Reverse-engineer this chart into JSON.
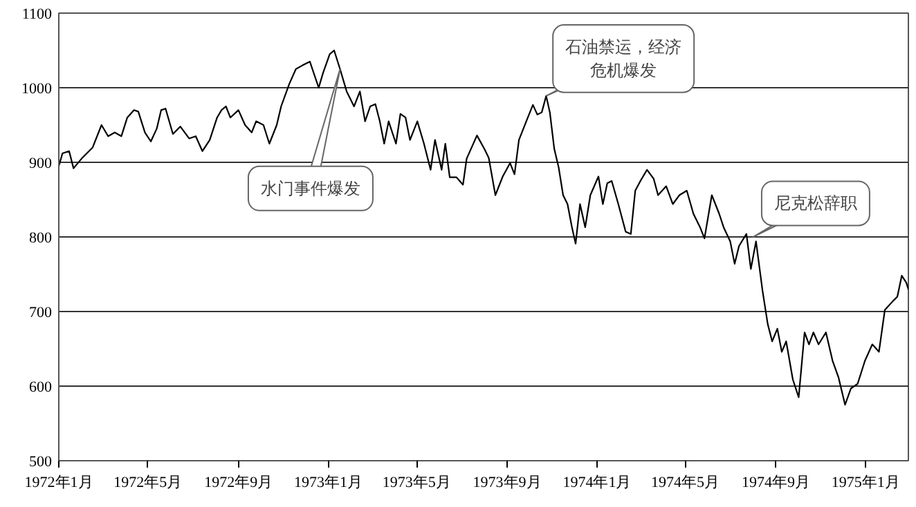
{
  "chart_data": {
    "type": "line",
    "x": [
      "1972-01-01",
      "1972-01-06",
      "1972-01-15",
      "1972-01-21",
      "1972-02-01",
      "1972-02-16",
      "1972-02-28",
      "1972-03-08",
      "1972-03-17",
      "1972-03-26",
      "1972-04-03",
      "1972-04-12",
      "1972-04-18",
      "1972-04-27",
      "1972-05-05",
      "1972-05-13",
      "1972-05-19",
      "1972-05-25",
      "1972-06-04",
      "1972-06-14",
      "1972-06-26",
      "1972-07-05",
      "1972-07-14",
      "1972-07-24",
      "1972-08-03",
      "1972-08-09",
      "1972-08-15",
      "1972-08-21",
      "1972-09-01",
      "1972-09-10",
      "1972-09-19",
      "1972-09-25",
      "1972-10-05",
      "1972-10-13",
      "1972-10-23",
      "1972-10-29",
      "1972-11-09",
      "1972-11-18",
      "1972-11-27",
      "1972-12-07",
      "1972-12-19",
      "1972-12-25",
      "1973-01-03",
      "1973-01-09",
      "1973-01-17",
      "1973-01-26",
      "1973-02-05",
      "1973-02-13",
      "1973-02-20",
      "1973-02-27",
      "1973-03-06",
      "1973-03-12",
      "1973-03-18",
      "1973-03-24",
      "1973-04-03",
      "1973-04-09",
      "1973-04-16",
      "1973-04-22",
      "1973-05-02",
      "1973-05-11",
      "1973-05-20",
      "1973-05-26",
      "1973-06-04",
      "1973-06-09",
      "1973-06-15",
      "1973-06-24",
      "1973-07-03",
      "1973-07-08",
      "1973-07-22",
      "1973-08-01",
      "1973-08-07",
      "1973-08-16",
      "1973-08-26",
      "1973-09-05",
      "1973-09-11",
      "1973-09-17",
      "1973-09-27",
      "1973-10-06",
      "1973-10-12",
      "1973-10-18",
      "1973-10-24",
      "1973-10-29",
      "1973-11-04",
      "1973-11-10",
      "1973-11-16",
      "1973-11-22",
      "1973-11-28",
      "1973-12-03",
      "1973-12-09",
      "1973-12-16",
      "1973-12-23",
      "1974-01-03",
      "1974-01-09",
      "1974-01-15",
      "1974-01-21",
      "1974-01-30",
      "1974-02-09",
      "1974-02-16",
      "1974-02-22",
      "1974-03-01",
      "1974-03-10",
      "1974-03-19",
      "1974-03-25",
      "1974-04-05",
      "1974-04-14",
      "1974-04-23",
      "1974-05-03",
      "1974-05-12",
      "1974-05-21",
      "1974-05-27",
      "1974-06-06",
      "1974-06-16",
      "1974-06-22",
      "1974-07-01",
      "1974-07-07",
      "1974-07-13",
      "1974-07-23",
      "1974-07-29",
      "1974-08-05",
      "1974-08-14",
      "1974-08-21",
      "1974-08-27",
      "1974-09-03",
      "1974-09-09",
      "1974-09-15",
      "1974-09-24",
      "1974-10-02",
      "1974-10-10",
      "1974-10-16",
      "1974-10-22",
      "1974-10-29",
      "1974-11-08",
      "1974-11-17",
      "1974-11-25",
      "1974-12-04",
      "1974-12-12",
      "1974-12-21",
      "1974-12-31",
      "1975-01-10",
      "1975-01-19",
      "1975-01-27",
      "1975-02-07",
      "1975-02-13",
      "1975-02-19",
      "1975-02-25",
      "1975-02-28"
    ],
    "series": [
      {
        "color": "#000000",
        "values": [
          895,
          912,
          915,
          892,
          905,
          920,
          950,
          935,
          940,
          935,
          960,
          970,
          968,
          940,
          928,
          945,
          970,
          972,
          938,
          948,
          932,
          935,
          915,
          930,
          960,
          970,
          975,
          960,
          970,
          950,
          940,
          955,
          950,
          925,
          950,
          975,
          1005,
          1025,
          1030,
          1035,
          1000,
          1020,
          1045,
          1050,
          1025,
          995,
          975,
          995,
          955,
          975,
          978,
          955,
          925,
          955,
          925,
          965,
          960,
          930,
          955,
          925,
          890,
          930,
          890,
          925,
          880,
          880,
          870,
          905,
          936,
          918,
          906,
          856,
          881,
          899,
          884,
          930,
          955,
          977,
          964,
          967,
          989,
          967,
          918,
          893,
          856,
          844,
          813,
          791,
          844,
          813,
          856,
          881,
          844,
          872,
          875,
          844,
          807,
          804,
          862,
          875,
          890,
          878,
          856,
          868,
          844,
          856,
          862,
          831,
          813,
          798,
          856,
          831,
          813,
          794,
          764,
          788,
          804,
          757,
          794,
          727,
          683,
          660,
          677,
          646,
          660,
          609,
          585,
          672,
          656,
          672,
          656,
          672,
          634,
          612,
          575,
          597,
          603,
          634,
          656,
          646,
          702,
          714,
          720,
          748,
          739,
          730
        ]
      }
    ],
    "xlim": [
      "1972-01-01",
      "1975-02-28"
    ],
    "xticks": [
      {
        "value": "1972-01-01",
        "label": "1972年1月"
      },
      {
        "value": "1972-05-01",
        "label": "1972年5月"
      },
      {
        "value": "1972-09-01",
        "label": "1972年9月"
      },
      {
        "value": "1973-01-01",
        "label": "1973年1月"
      },
      {
        "value": "1973-05-01",
        "label": "1973年5月"
      },
      {
        "value": "1973-09-01",
        "label": "1973年9月"
      },
      {
        "value": "1974-01-01",
        "label": "1974年1月"
      },
      {
        "value": "1974-05-01",
        "label": "1974年5月"
      },
      {
        "value": "1974-09-01",
        "label": "1974年9月"
      },
      {
        "value": "1975-01-01",
        "label": "1975年1月"
      }
    ],
    "ylim": [
      500,
      1100
    ],
    "yticks": [
      500,
      600,
      700,
      800,
      900,
      1000,
      1100
    ],
    "grid": "y",
    "line_style": "solid",
    "annotations": [
      {
        "text": "水门事件爆发",
        "x": "1973-01-17",
        "y": 1025
      },
      {
        "text": "石油禁运，经济危机爆发",
        "x": "1973-10-24",
        "y": 989
      },
      {
        "text": "尼克松辞职",
        "x": "1974-08-01",
        "y": 800
      }
    ]
  }
}
